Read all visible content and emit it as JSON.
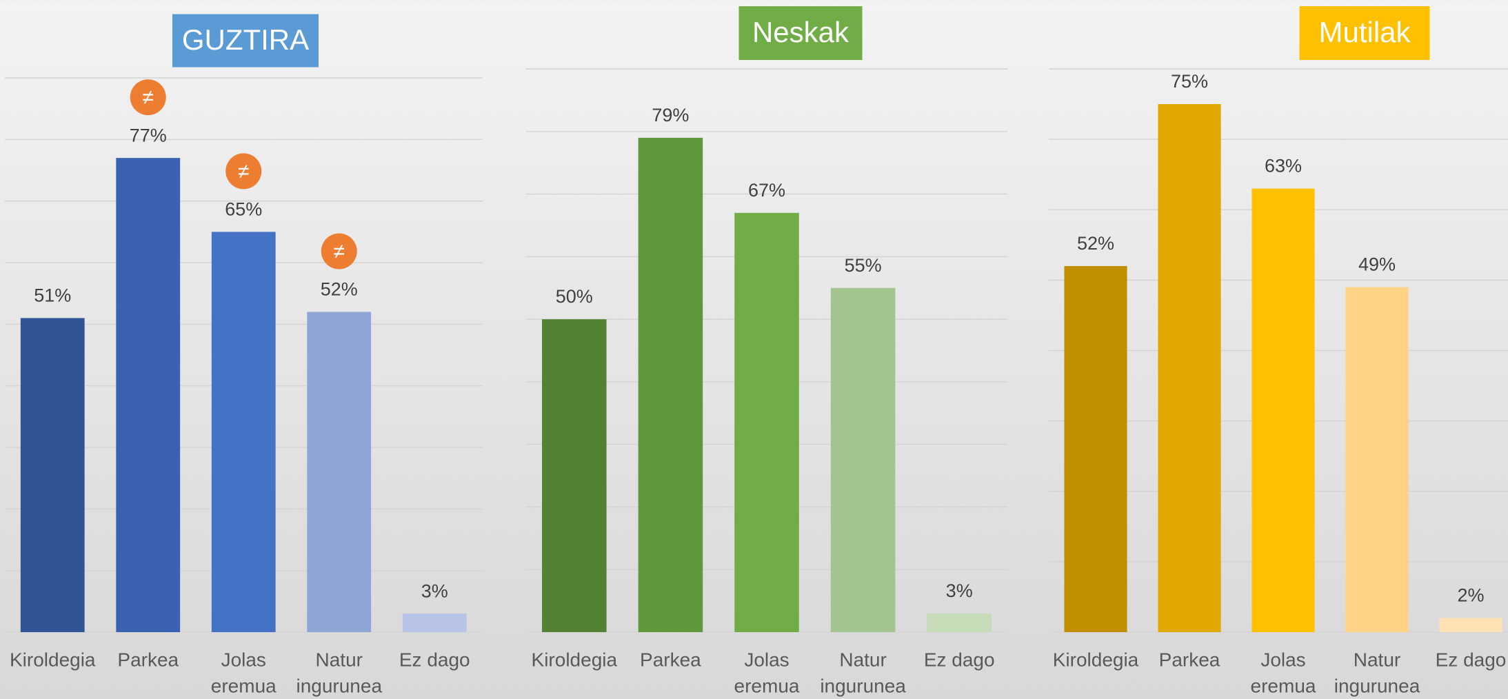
{
  "chart_data": [
    {
      "type": "bar",
      "title": "GUZTIRA",
      "title_color": "#5b9bd5",
      "categories": [
        [
          "Kiroldegia"
        ],
        [
          "Parkea"
        ],
        [
          "Jolas",
          "eremua"
        ],
        [
          "Natur",
          "ingurunea"
        ],
        [
          "Ez dago"
        ]
      ],
      "values": [
        51,
        77,
        65,
        52,
        3
      ],
      "value_labels": [
        "51%",
        "77%",
        "65%",
        "52%",
        "3%"
      ],
      "colors": [
        "#2f5597",
        "#3a62b0",
        "#4472c4",
        "#8fa5d6",
        "#b8c3e8"
      ],
      "ylim": [
        0,
        90
      ],
      "yticks": [
        0,
        10,
        20,
        30,
        40,
        50,
        60,
        70,
        80,
        90
      ],
      "grid": true,
      "annotations": [
        {
          "category": 1,
          "text": "≠"
        },
        {
          "category": 2,
          "text": "≠"
        },
        {
          "category": 3,
          "text": "≠"
        }
      ]
    },
    {
      "type": "bar",
      "title": "Neskak",
      "title_color": "#70ad47",
      "categories": [
        [
          "Kiroldegia"
        ],
        [
          "Parkea"
        ],
        [
          "Jolas",
          "eremua"
        ],
        [
          "Natur",
          "ingurunea"
        ],
        [
          "Ez dago"
        ]
      ],
      "values": [
        50,
        79,
        67,
        55,
        3
      ],
      "value_labels": [
        "50%",
        "79%",
        "67%",
        "55%",
        "3%"
      ],
      "colors": [
        "#548235",
        "#5f993c",
        "#70ad47",
        "#a3c48e",
        "#c6dbb8"
      ],
      "ylim": [
        0,
        90
      ],
      "yticks": [
        0,
        10,
        20,
        30,
        40,
        50,
        60,
        70,
        80,
        90
      ],
      "grid": true
    },
    {
      "type": "bar",
      "title": "Mutilak",
      "title_color": "#ffc000",
      "categories": [
        [
          "Kiroldegia"
        ],
        [
          "Parkea"
        ],
        [
          "Jolas",
          "eremua"
        ],
        [
          "Natur",
          "ingurunea"
        ],
        [
          "Ez dago"
        ]
      ],
      "values": [
        52,
        75,
        63,
        49,
        2
      ],
      "value_labels": [
        "52%",
        "75%",
        "63%",
        "49%",
        "2%"
      ],
      "colors": [
        "#bf8f00",
        "#e0a800",
        "#ffc000",
        "#ffd285",
        "#ffe1b5"
      ],
      "ylim": [
        0,
        80
      ],
      "yticks": [
        0,
        10,
        20,
        30,
        40,
        50,
        60,
        70,
        80
      ],
      "grid": true
    }
  ]
}
